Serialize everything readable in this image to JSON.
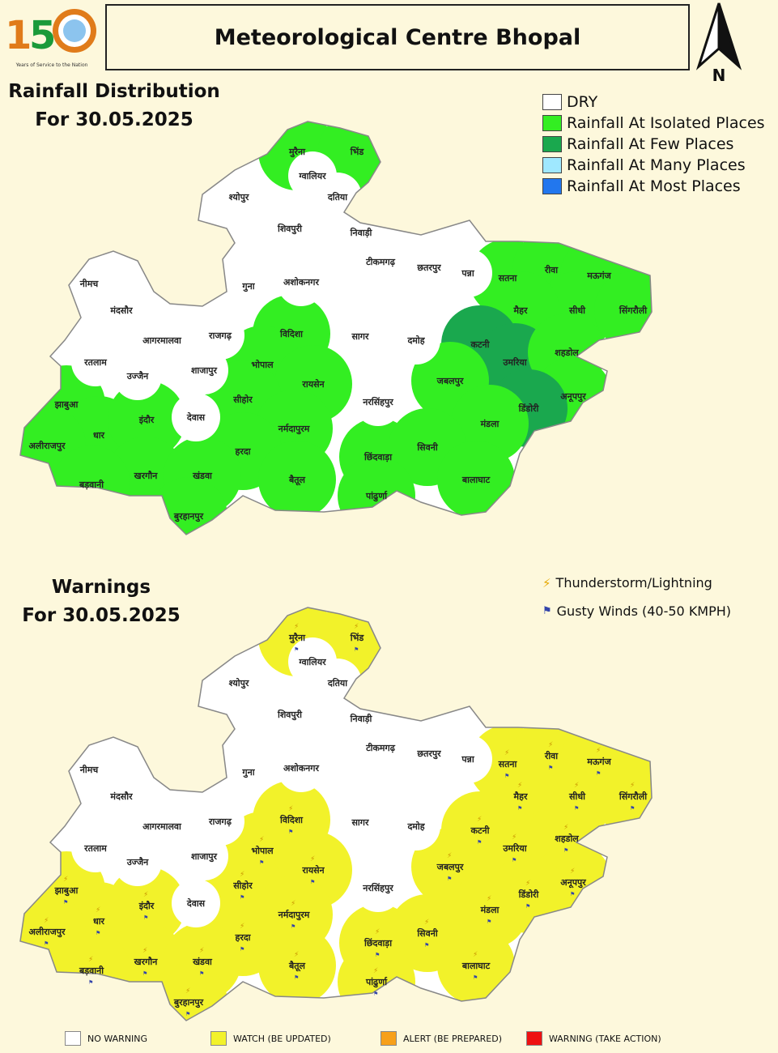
{
  "header": {
    "logo_text": "150",
    "logo_caption": "Years of Service to the Nation",
    "title": "Meteorological Centre Bhopal",
    "north_label": "N"
  },
  "rainfall": {
    "title_line1": "Rainfall Distribution",
    "title_line2": "For 30.05.2025",
    "legend": [
      {
        "label": "DRY",
        "color": "#ffffff"
      },
      {
        "label": "Rainfall At Isolated Places",
        "color": "#33ee22"
      },
      {
        "label": "Rainfall At Few Places",
        "color": "#1aa84e"
      },
      {
        "label": "Rainfall At Many Places",
        "color": "#9fe8ff"
      },
      {
        "label": "Rainfall At Most Places",
        "color": "#2277ee"
      }
    ]
  },
  "warnings": {
    "title_line1": "Warnings",
    "title_line2": "For 30.05.2025",
    "hazard_legend": [
      {
        "label": "Thunderstorm/Lightning",
        "icon": "lightning-icon"
      },
      {
        "label": "Gusty Winds (40-50 KMPH)",
        "icon": "gusty-wind-icon"
      }
    ],
    "level_legend": [
      {
        "label": "NO WARNING",
        "color": "#ffffff"
      },
      {
        "label": "WATCH (BE UPDATED)",
        "color": "#f2f22a"
      },
      {
        "label": "ALERT (BE PREPARED)",
        "color": "#f7a01a"
      },
      {
        "label": "WARNING (TAKE ACTION)",
        "color": "#ee1111"
      }
    ]
  },
  "districts": [
    {
      "name": "मुरैना",
      "rain": 1,
      "warn": 1
    },
    {
      "name": "भिंड",
      "rain": 1,
      "warn": 1
    },
    {
      "name": "ग्वालियर",
      "rain": 0,
      "warn": 0
    },
    {
      "name": "दतिया",
      "rain": 0,
      "warn": 0
    },
    {
      "name": "श्योपुर",
      "rain": 0,
      "warn": 0
    },
    {
      "name": "शिवपुरी",
      "rain": 0,
      "warn": 0
    },
    {
      "name": "निवाड़ी",
      "rain": 0,
      "warn": 0
    },
    {
      "name": "टीकमगढ़",
      "rain": 0,
      "warn": 0
    },
    {
      "name": "छतरपुर",
      "rain": 0,
      "warn": 0
    },
    {
      "name": "पन्ना",
      "rain": 0,
      "warn": 0
    },
    {
      "name": "सतना",
      "rain": 1,
      "warn": 1
    },
    {
      "name": "रीवा",
      "rain": 1,
      "warn": 1
    },
    {
      "name": "मऊगंज",
      "rain": 1,
      "warn": 1
    },
    {
      "name": "सीधी",
      "rain": 1,
      "warn": 1
    },
    {
      "name": "सिंगरौली",
      "rain": 1,
      "warn": 1
    },
    {
      "name": "मैहर",
      "rain": 1,
      "warn": 1
    },
    {
      "name": "नीमच",
      "rain": 0,
      "warn": 0
    },
    {
      "name": "मंदसौर",
      "rain": 0,
      "warn": 0
    },
    {
      "name": "गुना",
      "rain": 0,
      "warn": 0
    },
    {
      "name": "अशोकनगर",
      "rain": 0,
      "warn": 0
    },
    {
      "name": "विदिशा",
      "rain": 1,
      "warn": 1
    },
    {
      "name": "सागर",
      "rain": 0,
      "warn": 0
    },
    {
      "name": "दमोह",
      "rain": 0,
      "warn": 0
    },
    {
      "name": "कटनी",
      "rain": 2,
      "warn": 1
    },
    {
      "name": "उमरिया",
      "rain": 2,
      "warn": 1
    },
    {
      "name": "शहडोल",
      "rain": 1,
      "warn": 1
    },
    {
      "name": "रतलाम",
      "rain": 0,
      "warn": 0
    },
    {
      "name": "उज्जैन",
      "rain": 0,
      "warn": 0
    },
    {
      "name": "आगरमालवा",
      "rain": 0,
      "warn": 0
    },
    {
      "name": "राजगढ़",
      "rain": 0,
      "warn": 0
    },
    {
      "name": "शाजापुर",
      "rain": 0,
      "warn": 0
    },
    {
      "name": "भोपाल",
      "rain": 1,
      "warn": 1
    },
    {
      "name": "रायसेन",
      "rain": 1,
      "warn": 1
    },
    {
      "name": "जबलपुर",
      "rain": 1,
      "warn": 1
    },
    {
      "name": "अनूपपुर",
      "rain": 1,
      "warn": 1
    },
    {
      "name": "डिंडोरी",
      "rain": 2,
      "warn": 1
    },
    {
      "name": "झाबुआ",
      "rain": 1,
      "warn": 1
    },
    {
      "name": "धार",
      "rain": 1,
      "warn": 1
    },
    {
      "name": "इंदौर",
      "rain": 1,
      "warn": 1
    },
    {
      "name": "देवास",
      "rain": 0,
      "warn": 0
    },
    {
      "name": "सीहोर",
      "rain": 1,
      "warn": 1
    },
    {
      "name": "नरसिंहपुर",
      "rain": 0,
      "warn": 0
    },
    {
      "name": "मंडला",
      "rain": 1,
      "warn": 1
    },
    {
      "name": "अलीराजपुर",
      "rain": 1,
      "warn": 1
    },
    {
      "name": "नर्मदापुरम",
      "rain": 1,
      "warn": 1
    },
    {
      "name": "हरदा",
      "rain": 1,
      "warn": 1
    },
    {
      "name": "छिंदवाड़ा",
      "rain": 1,
      "warn": 1
    },
    {
      "name": "सिवनी",
      "rain": 1,
      "warn": 1
    },
    {
      "name": "खरगौन",
      "rain": 1,
      "warn": 1
    },
    {
      "name": "खंडवा",
      "rain": 1,
      "warn": 1
    },
    {
      "name": "बड़वानी",
      "rain": 1,
      "warn": 1
    },
    {
      "name": "बैतूल",
      "rain": 1,
      "warn": 1
    },
    {
      "name": "पांढुर्णा",
      "rain": 1,
      "warn": 1
    },
    {
      "name": "बालाघाट",
      "rain": 1,
      "warn": 1
    },
    {
      "name": "बुरहानपुर",
      "rain": 1,
      "warn": 1
    }
  ]
}
